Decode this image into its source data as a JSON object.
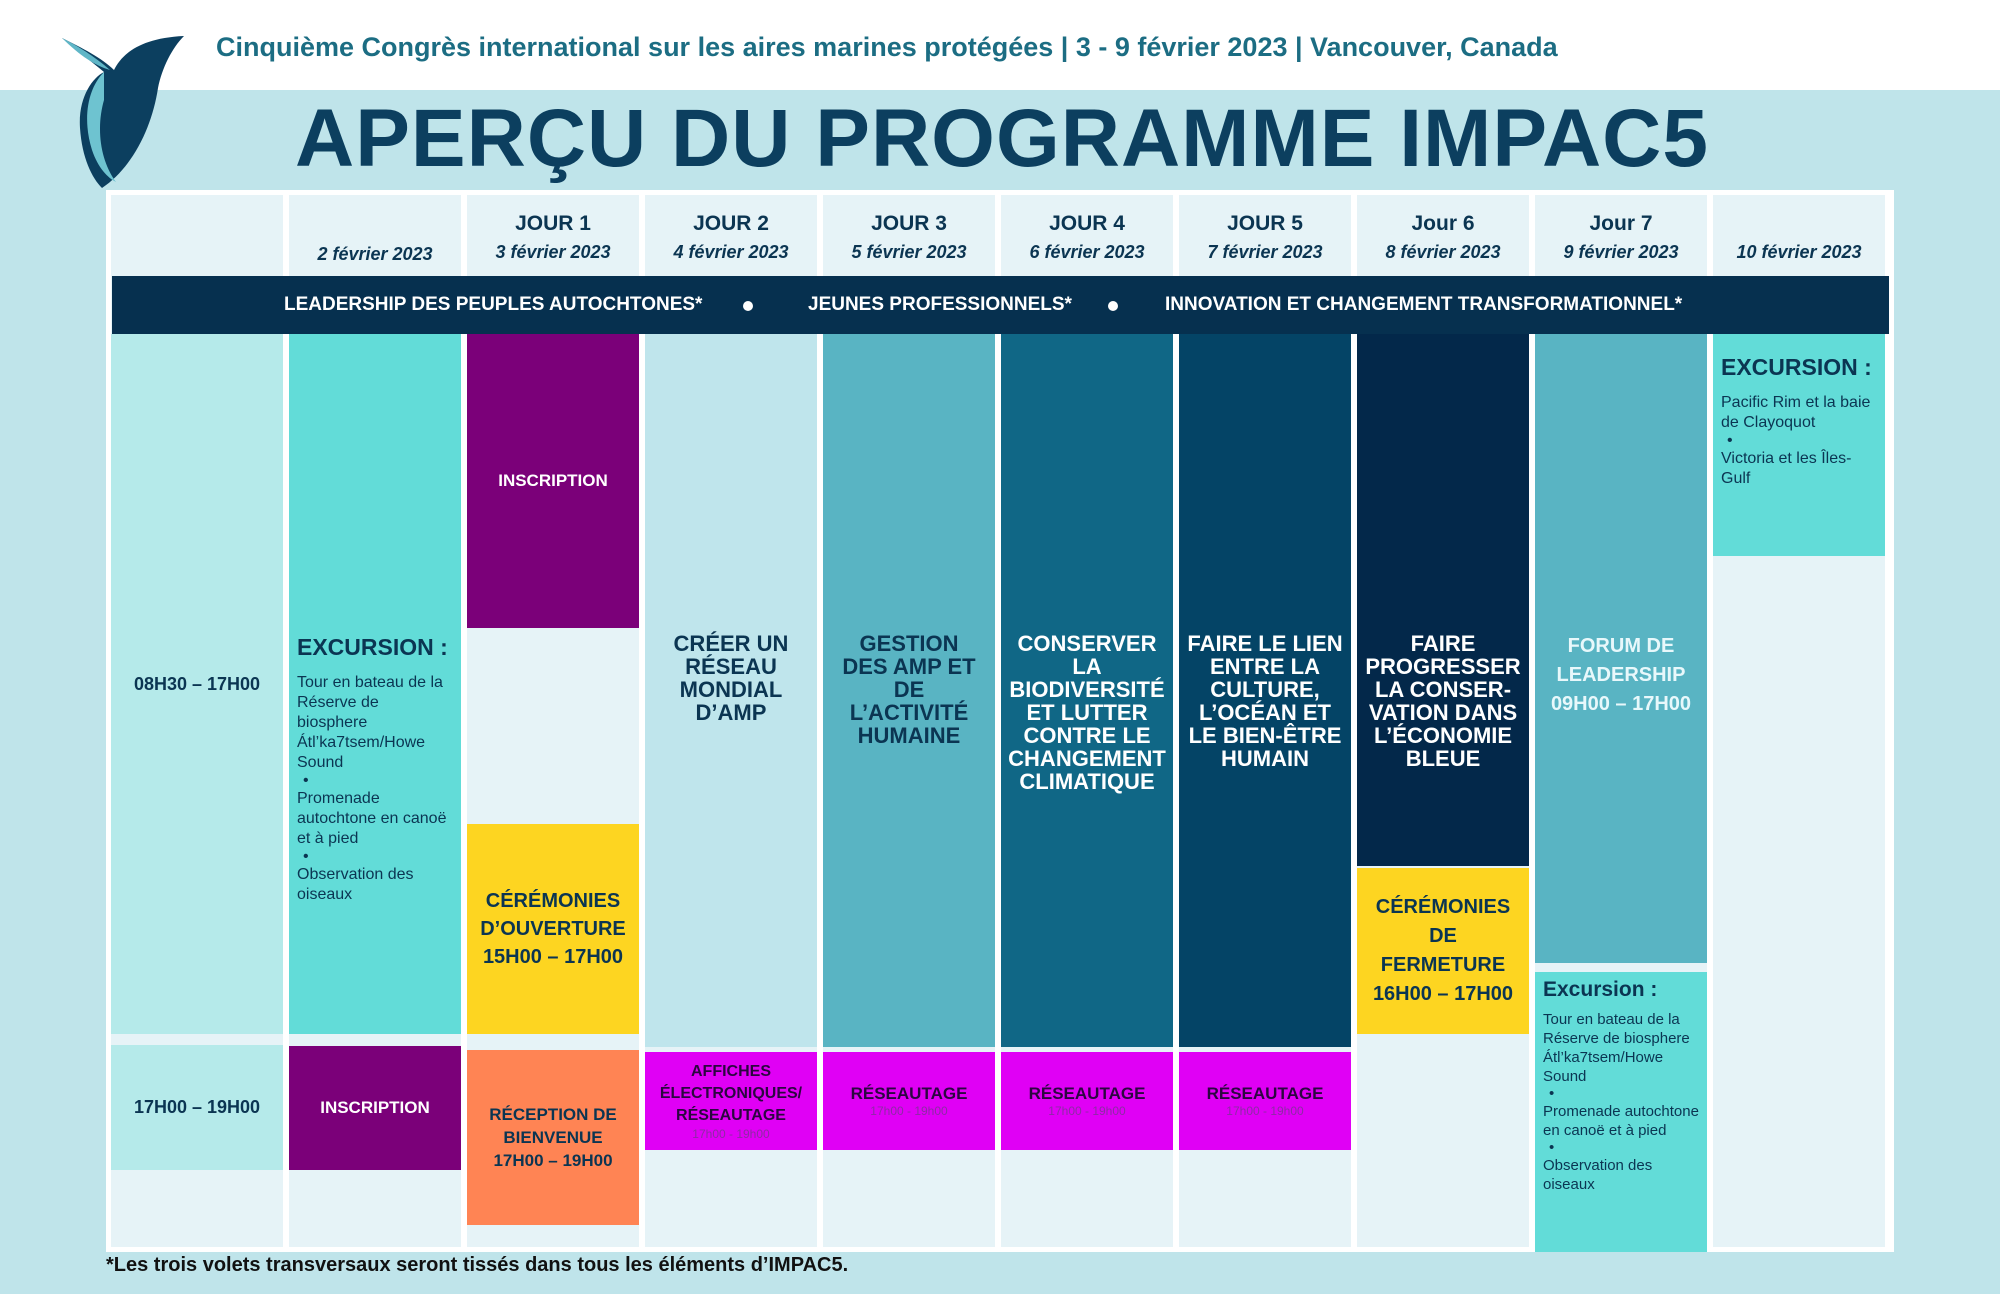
{
  "header": {
    "subtitle": "Cinquième Congrès international sur les aires marines protégées | 3 - 9 février 2023 | Vancouver, Canada",
    "title": "APERÇU DU PROGRAMME IMPAC5"
  },
  "columns": [
    {
      "day": "",
      "date": ""
    },
    {
      "day": "",
      "date": "2 février 2023"
    },
    {
      "day": "JOUR 1",
      "date": "3 février 2023"
    },
    {
      "day": "JOUR 2",
      "date": "4 février 2023"
    },
    {
      "day": "JOUR 3",
      "date": "5 février 2023"
    },
    {
      "day": "JOUR 4",
      "date": "6 février 2023"
    },
    {
      "day": "JOUR 5",
      "date": "7 février 2023"
    },
    {
      "day": "Jour 6",
      "date": "8 février 2023"
    },
    {
      "day": "Jour 7",
      "date": "9 février 2023"
    },
    {
      "day": "",
      "date": "10 février 2023"
    }
  ],
  "band": {
    "items": [
      "LEADERSHIP DES PEUPLES AUTOCHTONES*",
      "JEUNES PROFESSIONNELS*",
      "INNOVATION ET CHANGEMENT TRANSFORMATIONNEL*"
    ]
  },
  "times": {
    "day": "08H30 – 17H00",
    "evening": "17H00 – 19H00"
  },
  "excursion_feb2": {
    "title": "EXCURSION :",
    "items": [
      "Tour en bateau de la Réserve de biosphere Átl’ka7tsem/Howe Sound",
      "Promenade autochtone en canoë et à pied",
      "Observation des oiseaux"
    ]
  },
  "inscription_feb2": "INSCRIPTION",
  "day1": {
    "inscription": "INSCRIPTION",
    "ceremony_title": "CÉRÉMONIES D’OUVERTURE",
    "ceremony_time": "15H00 – 17H00",
    "reception_title": "RÉCEPTION DE BIENVENUE",
    "reception_time": "17H00 – 19H00"
  },
  "day2": {
    "theme": "CRÉER UN RÉSEAU MONDIAL D’AMP",
    "evening_title": "AFFICHES ÉLECTRONIQUES/ RÉSEAUTAGE",
    "evening_time": "17h00 - 19h00"
  },
  "day3": {
    "theme": "GESTION DES AMP ET DE L’ACTIVITÉ HUMAINE",
    "evening_title": "RÉSEAUTAGE",
    "evening_time": "17h00 - 19h00"
  },
  "day4": {
    "theme": "CONSERVER LA BIODIVERSITÉ ET LUTTER CONTRE LE CHANGEMENT CLIMATIQUE",
    "evening_title": "RÉSEAUTAGE",
    "evening_time": "17h00 - 19h00"
  },
  "day5": {
    "theme": "FAIRE LE LIEN ENTRE LA CULTURE, L’OCÉAN ET LE BIEN-ÊTRE HUMAIN",
    "evening_title": "RÉSEAUTAGE",
    "evening_time": "17h00 - 19h00"
  },
  "day6": {
    "theme": "FAIRE PROGRESSER LA CONSER-VATION DANS L’ÉCONOMIE BLEUE",
    "ceremony_title": "CÉRÉMONIES DE FERMETURE",
    "ceremony_time": "16H00 – 17H00"
  },
  "day7": {
    "forum_title": "FORUM DE LEADERSHIP",
    "forum_time": "09H00 – 17H00",
    "excursion_title": "Excursion :",
    "excursion_items": [
      "Tour en bateau de la Réserve de biosphere Átl’ka7tsem/Howe Sound",
      "Promenade autochtone en canoë et à pied",
      "Observation des oiseaux"
    ]
  },
  "excursion_feb10": {
    "title": "EXCURSION :",
    "items": [
      "Pacific Rim et la baie de Clayoquot",
      "Victoria et les Îles-Gulf"
    ]
  },
  "footnote": "*Les trois volets transversaux seront tissés dans tous les éléments d’IMPAC5.",
  "colors": {
    "navy": "#06304f",
    "teal_light": "#b5eaea",
    "turquoise": "#62dcd8",
    "purple": "#7b0079",
    "yellow": "#fdd521",
    "orange": "#ff8454",
    "magenta": "#e000f5",
    "day2": "#bfe5ec",
    "day3": "#59b4c3",
    "day4": "#106786",
    "day5": "#044466",
    "day6": "#03284a"
  }
}
